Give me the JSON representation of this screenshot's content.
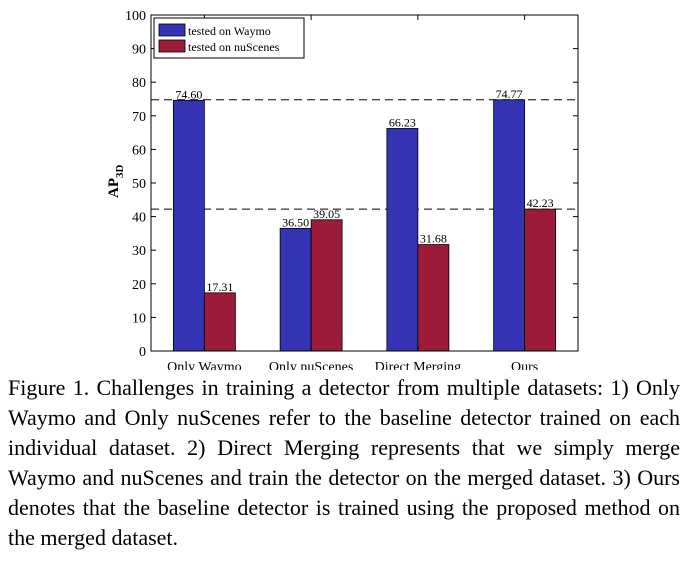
{
  "chart_data": {
    "type": "bar",
    "categories": [
      "Only Waymo",
      "Only nuScenes",
      "Direct Merging",
      "Ours"
    ],
    "series": [
      {
        "name": "tested on Waymo",
        "values": [
          74.6,
          36.5,
          66.23,
          74.77
        ],
        "labels": [
          "74.60",
          "36.50",
          "66.23",
          "74.77"
        ],
        "color": "#3333b3"
      },
      {
        "name": "tested on nuScenes",
        "values": [
          17.31,
          39.05,
          31.68,
          42.23
        ],
        "labels": [
          "17.31",
          "39.05",
          "31.68",
          "42.23"
        ],
        "color": "#9b1b38"
      }
    ],
    "ylabel_main": "AP",
    "ylabel_sub": "3D",
    "ylim": [
      0,
      100
    ],
    "yticks": [
      0,
      10,
      20,
      30,
      40,
      50,
      60,
      70,
      80,
      90,
      100
    ],
    "reference_lines": [
      74.77,
      42.23
    ],
    "legend_position": "top-left",
    "grid": false
  },
  "caption": "Figure 1. Challenges in training a detector from multiple datasets: 1) Only Waymo and Only nuScenes refer to the baseline detector trained on each individual dataset. 2) Direct Merging represents that we simply merge Waymo and nuScenes and train the detector on the merged dataset. 3) Ours denotes that the baseline detector is trained using the proposed method on the merged dataset."
}
